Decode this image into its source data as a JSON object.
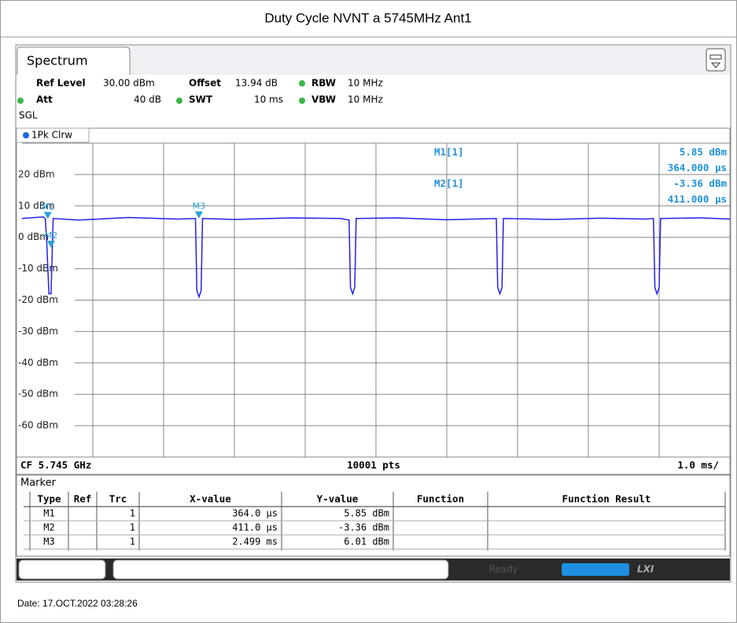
{
  "header": {
    "title": "Duty Cycle NVNT a 5745MHz Ant1"
  },
  "screen": {
    "tab": "Spectrum",
    "settings": {
      "ref_level_label": "Ref Level",
      "ref_level": "30.00 dBm",
      "offset_label": "Offset",
      "offset": "13.94 dB",
      "rbw_label": "RBW",
      "rbw": "10 MHz",
      "att_label": "Att",
      "att": "40 dB",
      "swt_label": "SWT",
      "swt": "10 ms",
      "vbw_label": "VBW",
      "vbw": "10 MHz",
      "mode": "SGL"
    },
    "trace_label": "1Pk Clrw",
    "readout": [
      [
        "M1[1]",
        "5.85 dBm",
        "364.000 µs"
      ],
      [
        "M2[1]",
        "-3.36 dBm",
        "411.000 µs"
      ]
    ],
    "footer": {
      "cf": "CF 5.745 GHz",
      "points": "10001 pts",
      "span": "1.0 ms/"
    },
    "marker_table": {
      "title": "Marker",
      "columns": [
        "Type",
        "Ref",
        "Trc",
        "X-value",
        "Y-value",
        "Function",
        "Function Result"
      ],
      "rows": [
        [
          "M1",
          "",
          "1",
          "364.0 µs",
          "5.85 dBm",
          "",
          ""
        ],
        [
          "M2",
          "",
          "1",
          "411.0 µs",
          "-3.36 dBm",
          "",
          ""
        ],
        [
          "M3",
          "",
          "1",
          "2.499 ms",
          "6.01 dBm",
          "",
          ""
        ]
      ]
    },
    "status": "Ready",
    "date": "Date: 17.OCT.2022  03:28:26"
  },
  "chart_data": {
    "type": "line",
    "x": [
      0,
      0.3,
      0.33,
      0.35,
      0.38,
      0.41,
      0.44,
      0.8,
      1.5,
      2.2,
      2.45,
      2.47,
      2.5,
      2.53,
      2.55,
      3.0,
      3.8,
      4.5,
      4.62,
      4.64,
      4.67,
      4.7,
      4.72,
      5.3,
      6.0,
      6.55,
      6.7,
      6.72,
      6.75,
      6.78,
      6.8,
      7.5,
      8.2,
      8.8,
      8.92,
      8.94,
      8.97,
      9.0,
      9.02,
      9.6,
      10
    ],
    "series": [
      {
        "color": "#2222e8",
        "values": [
          6,
          6.5,
          5.85,
          -2,
          -18,
          -18,
          6,
          5.5,
          6.3,
          5.8,
          6.01,
          -17,
          -19,
          -17,
          6,
          5.7,
          6.2,
          6,
          5.5,
          -16,
          -18,
          -16,
          6,
          6.2,
          5.6,
          5.9,
          6,
          -16,
          -18,
          -16,
          6,
          5.7,
          6.1,
          5.8,
          6,
          -16,
          -18,
          -16,
          6,
          6.2,
          5.8
        ]
      }
    ],
    "markers": [
      {
        "name": "M1",
        "x": 0.364,
        "y": 5.85
      },
      {
        "name": "M2",
        "x": 0.411,
        "y": -3.36
      },
      {
        "name": "M3",
        "x": 2.499,
        "y": 6.01
      }
    ],
    "marker_color": "#2aa0d8",
    "xlim": [
      0,
      10
    ],
    "ylim": [
      -70,
      30
    ],
    "yticks": [
      {
        "value": 20,
        "label": "20 dBm"
      },
      {
        "value": 10,
        "label": "10 dBm"
      },
      {
        "value": 0,
        "label": "0 dBm"
      },
      {
        "value": -10,
        "label": "-10 dBm"
      },
      {
        "value": -20,
        "label": "-20 dBm"
      },
      {
        "value": -30,
        "label": "-30 dBm"
      },
      {
        "value": -40,
        "label": "-40 dBm"
      },
      {
        "value": -50,
        "label": "-50 dBm"
      },
      {
        "value": -60,
        "label": "-60 dBm"
      }
    ],
    "grid": true
  }
}
